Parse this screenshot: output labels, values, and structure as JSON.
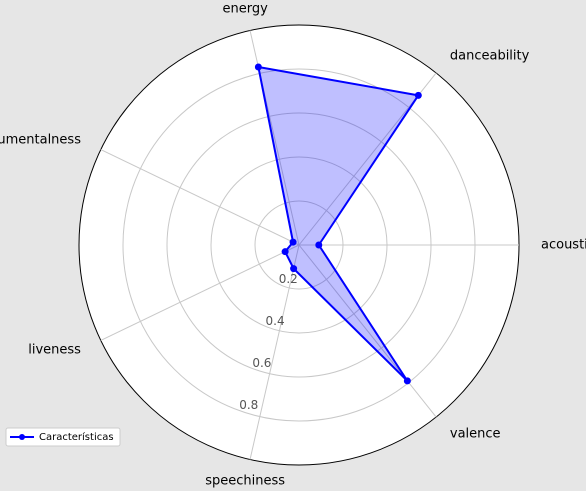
{
  "chart_data": {
    "type": "radar",
    "categories": [
      "acousticness",
      "danceability",
      "energy",
      "instrumentalness",
      "liveness",
      "speechiness",
      "valence"
    ],
    "series": [
      {
        "name": "Características",
        "color": "#0000ff",
        "values": [
          0.09,
          0.87,
          0.83,
          0.03,
          0.07,
          0.11,
          0.79
        ]
      }
    ],
    "ylim": [
      0,
      1
    ],
    "yticks": [
      0.2,
      0.4,
      0.6,
      0.8
    ],
    "grid": true,
    "legend": "lower left"
  }
}
